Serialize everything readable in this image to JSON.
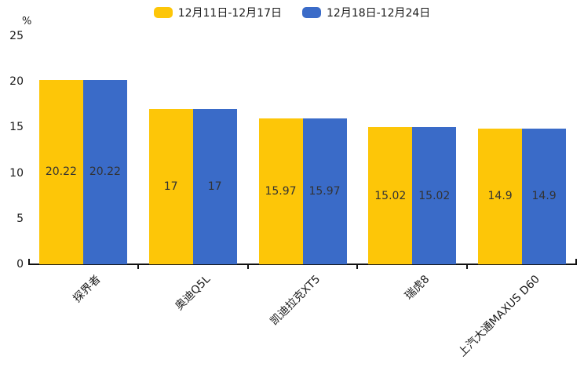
{
  "chart_data": {
    "type": "bar",
    "title": "",
    "categories": [
      "探界者",
      "奥迪Q5L",
      "凯迪拉克XT5",
      "瑞虎8",
      "上汽大通MAXUS D60"
    ],
    "series": [
      {
        "name": "12月11日-12月17日",
        "color": "#FDC608",
        "values": [
          20.22,
          17,
          15.97,
          15.02,
          14.9
        ]
      },
      {
        "name": "12月18日-12月24日",
        "color": "#3A6BC8",
        "values": [
          20.22,
          17,
          15.97,
          15.02,
          14.9
        ]
      }
    ],
    "value_labels": [
      [
        "20.22",
        "17",
        "15.97",
        "15.02",
        "14.9"
      ],
      [
        "20.22",
        "17",
        "15.97",
        "15.02",
        "14.9"
      ]
    ],
    "xlabel": "",
    "ylabel": "%",
    "ylim": [
      0,
      25
    ],
    "yticks": [
      0,
      5,
      10,
      15,
      20,
      25
    ],
    "grid": false,
    "legend_position": "top-center",
    "bar_label_position": "center-inside",
    "xtick_rotation_deg": 45,
    "value_label_color": "#333333",
    "axis_color": "#111111"
  }
}
